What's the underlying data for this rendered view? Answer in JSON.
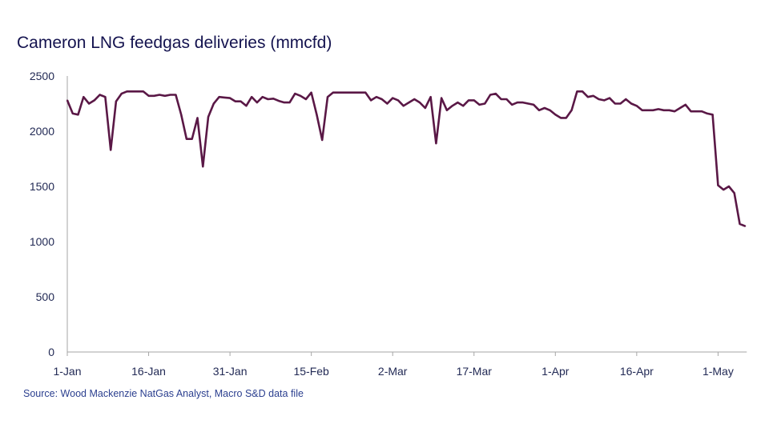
{
  "chart_data": {
    "type": "line",
    "title": "Cameron LNG feedgas deliveries (mmcfd)",
    "source": "Source: Wood Mackenzie NatGas Analyst, Macro S&D data file",
    "xlabel": "",
    "ylabel": "",
    "ylim": [
      0,
      2500
    ],
    "yticks": [
      "0",
      "500",
      "1000",
      "1500",
      "2000",
      "2500"
    ],
    "ytick_values": [
      0,
      500,
      1000,
      1500,
      2000,
      2500
    ],
    "xticks": [
      "1-Jan",
      "16-Jan",
      "31-Jan",
      "15-Feb",
      "2-Mar",
      "17-Mar",
      "1-Apr",
      "16-Apr",
      "1-May"
    ],
    "xtick_days": [
      0,
      15,
      30,
      45,
      60,
      75,
      90,
      105,
      120
    ],
    "x_unit": "days since 1-Jan",
    "xlim": [
      0,
      125
    ],
    "grid": false,
    "line_color": "#5a1846",
    "series": [
      {
        "name": "Feedgas deliveries",
        "values": [
          2280,
          2160,
          2150,
          2310,
          2250,
          2280,
          2330,
          2310,
          1830,
          2270,
          2340,
          2360,
          2360,
          2360,
          2360,
          2320,
          2320,
          2330,
          2320,
          2330,
          2330,
          2150,
          1930,
          1930,
          2120,
          1680,
          2130,
          2250,
          2310,
          2305,
          2300,
          2270,
          2270,
          2230,
          2310,
          2260,
          2310,
          2290,
          2295,
          2275,
          2260,
          2260,
          2340,
          2320,
          2290,
          2350,
          2150,
          1920,
          2310,
          2350,
          2350,
          2350,
          2350,
          2350,
          2350,
          2350,
          2280,
          2310,
          2290,
          2250,
          2300,
          2280,
          2230,
          2260,
          2290,
          2260,
          2210,
          2310,
          1890,
          2300,
          2190,
          2230,
          2260,
          2230,
          2280,
          2280,
          2240,
          2250,
          2330,
          2340,
          2290,
          2290,
          2240,
          2260,
          2260,
          2250,
          2240,
          2190,
          2210,
          2190,
          2150,
          2120,
          2120,
          2190,
          2360,
          2360,
          2310,
          2320,
          2290,
          2280,
          2300,
          2250,
          2250,
          2290,
          2250,
          2230,
          2190,
          2190,
          2190,
          2200,
          2190,
          2190,
          2180,
          2210,
          2240,
          2180,
          2180,
          2180,
          2160,
          2150,
          1510,
          1470,
          1500,
          1440,
          1160,
          1140
        ]
      }
    ]
  }
}
